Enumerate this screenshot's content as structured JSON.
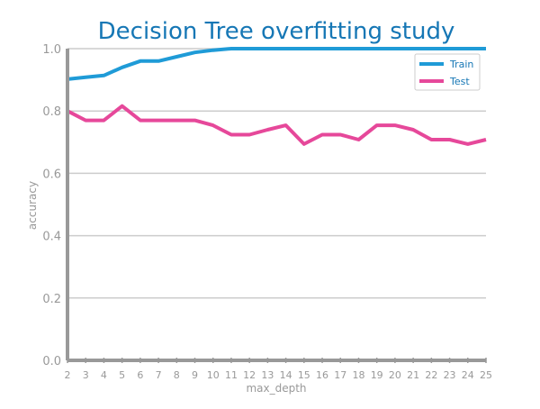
{
  "chart_data": {
    "type": "line",
    "title": "Decision Tree overfitting study",
    "xlabel": "max_depth",
    "ylabel": "accuracy",
    "x": [
      2,
      3,
      4,
      5,
      6,
      7,
      8,
      9,
      10,
      11,
      12,
      13,
      14,
      15,
      16,
      17,
      18,
      19,
      20,
      21,
      22,
      23,
      24,
      25
    ],
    "xlim": [
      2,
      25
    ],
    "ylim": [
      0.0,
      1.0
    ],
    "yticks": [
      "0.0",
      "0.2",
      "0.4",
      "0.6",
      "0.8",
      "1.0"
    ],
    "grid": "horizontal",
    "legend": "top-right",
    "series": [
      {
        "name": "Train",
        "color": "#1f9bd7",
        "values": [
          0.902,
          0.908,
          0.914,
          0.94,
          0.96,
          0.96,
          0.974,
          0.988,
          0.995,
          1.0,
          1.0,
          1.0,
          1.0,
          1.0,
          1.0,
          1.0,
          1.0,
          1.0,
          1.0,
          1.0,
          1.0,
          1.0,
          1.0,
          1.0
        ]
      },
      {
        "name": "Test",
        "color": "#e6489a",
        "values": [
          0.8,
          0.77,
          0.77,
          0.816,
          0.77,
          0.77,
          0.77,
          0.77,
          0.754,
          0.724,
          0.724,
          0.74,
          0.754,
          0.694,
          0.724,
          0.724,
          0.708,
          0.754,
          0.754,
          0.74,
          0.708,
          0.708,
          0.694,
          0.708
        ]
      }
    ]
  }
}
